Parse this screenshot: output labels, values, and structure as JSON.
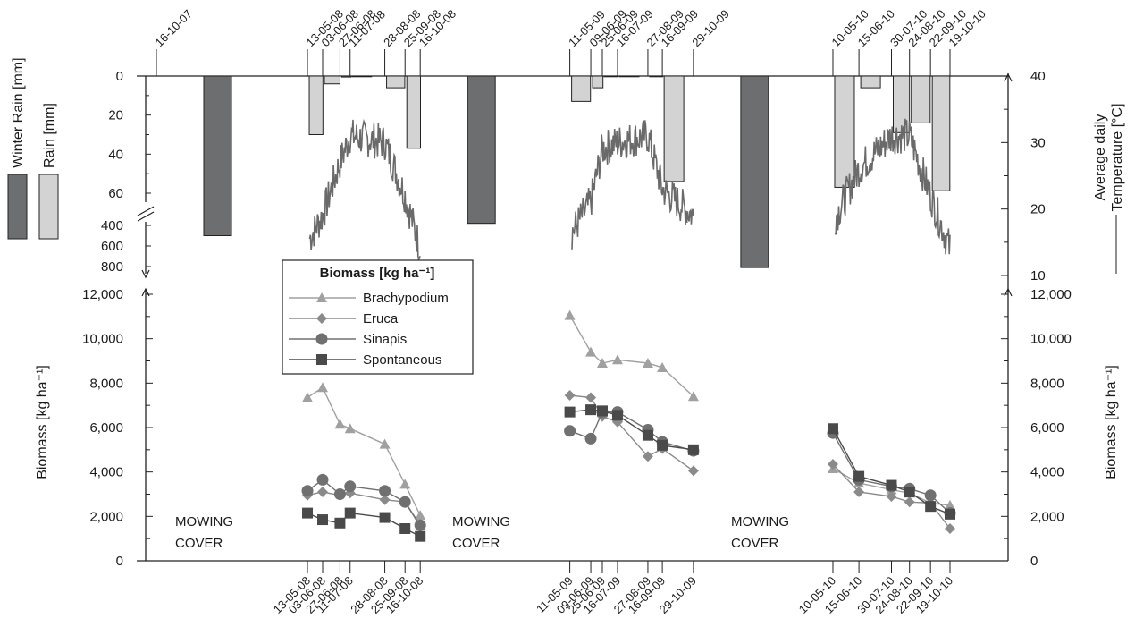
{
  "colors": {
    "winter_rain": "#6d6e70",
    "rain": "#d3d3d3",
    "temperature": "#6a6a6a",
    "brachypodium": "#a0a0a0",
    "eruca": "#8a8a8a",
    "sinapis": "#707070",
    "spontaneous": "#4a4a4a",
    "axis": "#222222"
  },
  "top_dates": {
    "labels": [
      "16-10-07",
      "13-05-08",
      "03-06-08",
      "27-06-08",
      "11-07-08",
      "28-08-08",
      "25-09-08",
      "16-10-08",
      "11-05-09",
      "09-06-09",
      "25-06-09",
      "16-07-09",
      "27-08-09",
      "16-09-09",
      "29-10-09",
      "10-05-10",
      "15-06-10",
      "30-07-10",
      "24-08-10",
      "22-09-10",
      "19-10-10"
    ],
    "days": [
      -209,
      0,
      21,
      45,
      59,
      107,
      135,
      156,
      363,
      392,
      408,
      429,
      471,
      491,
      534,
      727,
      763,
      808,
      833,
      862,
      889
    ]
  },
  "bottom_dates": {
    "labels": [
      "13-05-08",
      "03-06-08",
      "27-06-08",
      "11-07-08",
      "28-08-08",
      "25-09-08",
      "16-10-08",
      "11-05-09",
      "09-06-09",
      "25-06-09",
      "16-07-09",
      "27-08-09",
      "16-09-09",
      "29-10-09",
      "10-05-10",
      "15-06-10",
      "30-07-10",
      "24-08-10",
      "22-09-10",
      "19-10-10"
    ]
  },
  "chart_data": [
    {
      "type": "bar",
      "title": "",
      "ylabel": "Rain [mm]",
      "ylim_rain": [
        0,
        60
      ],
      "ylim_winter": [
        400,
        800
      ],
      "rain_ticks": [
        "0",
        "20",
        "40",
        "60"
      ],
      "winter_ticks": [
        "400",
        "600",
        "800"
      ],
      "series": [
        {
          "name": "Winter Rain [mm]",
          "x": [
            "16-10-07 – 13-05-08",
            "16-10-08 – 11-05-09",
            "29-10-09 – 10-05-10"
          ],
          "values": [
            500,
            380,
            810
          ]
        },
        {
          "name": "Rain [mm]",
          "x": [
            "13-05-08 – 03-06-08",
            "03-06-08 – 27-06-08",
            "27-06-08 – 11-07-08",
            "11-07-08 – 28-08-08",
            "28-08-08 – 25-09-08",
            "25-09-08 – 16-10-08",
            "11-05-09 – 09-06-09",
            "09-06-09 – 25-06-09",
            "25-06-09 – 16-07-09",
            "16-07-09 – 27-08-09",
            "27-08-09 – 16-09-09",
            "16-09-09 – 29-10-09",
            "10-05-10 – 15-06-10",
            "15-06-10 – 30-07-10",
            "30-07-10 – 24-08-10",
            "24-08-10 – 22-09-10",
            "22-09-10 – 19-10-10"
          ],
          "values": [
            30,
            4,
            0.5,
            0.3,
            6,
            37,
            13,
            6,
            0.3,
            0.3,
            0.3,
            54,
            57,
            6,
            29,
            24,
            63
          ]
        }
      ]
    },
    {
      "type": "line",
      "title": "",
      "ylabel": "Average daily Temperature [°C]",
      "ylim": [
        10,
        40
      ],
      "ticks": [
        "10",
        "20",
        "30",
        "40"
      ],
      "series": [
        {
          "name": "Average daily Temperature [°C]",
          "segments": [
            {
              "x": [
                "13-05-08",
                "03-06-08",
                "27-06-08",
                "11-07-08",
                "28-08-08",
                "25-09-08",
                "16-10-08"
              ],
              "anchors": [
                15,
                19,
                27,
                31,
                30,
                22,
                14
              ]
            },
            {
              "x": [
                "11-05-09",
                "09-06-09",
                "25-06-09",
                "16-07-09",
                "27-08-09",
                "16-09-09",
                "29-10-09"
              ],
              "anchors": [
                16,
                21,
                29,
                30,
                31,
                23,
                19
              ]
            },
            {
              "x": [
                "10-05-10",
                "15-06-10",
                "30-07-10",
                "24-08-10",
                "22-09-10",
                "19-10-10"
              ],
              "anchors": [
                18,
                26,
                31,
                31,
                22,
                14
              ]
            }
          ]
        }
      ]
    },
    {
      "type": "line",
      "title": "",
      "ylabel": "Biomass [kg ha⁻¹]",
      "ylim": [
        0,
        12000
      ],
      "ticks": [
        "0",
        "2,000",
        "4,000",
        "6,000",
        "8,000",
        "10,000",
        "12,000"
      ],
      "legend_title": "Biomass [kg ha⁻¹]",
      "legend_position": "top-left",
      "annotations": [
        "MOWING",
        "COVER"
      ],
      "series": [
        {
          "name": "Brachypodium",
          "x": [
            "13-05-08",
            "03-06-08",
            "27-06-08",
            "11-07-08",
            "28-08-08",
            "25-09-08",
            "16-10-08",
            "11-05-09",
            "09-06-09",
            "25-06-09",
            "16-07-09",
            "27-08-09",
            "16-09-09",
            "29-10-09",
            "10-05-10",
            "15-06-10",
            "30-07-10",
            "24-08-10",
            "22-09-10",
            "19-10-10"
          ],
          "values": [
            7350,
            7800,
            6150,
            5950,
            5250,
            3450,
            2050,
            11050,
            9400,
            8900,
            9050,
            8900,
            8700,
            7400,
            4150,
            3500,
            3200,
            3050,
            2600,
            2500
          ]
        },
        {
          "name": "Eruca",
          "x": [
            "13-05-08",
            "03-06-08",
            "27-06-08",
            "11-07-08",
            "28-08-08",
            "25-09-08",
            "16-10-08",
            "11-05-09",
            "09-06-09",
            "25-06-09",
            "16-07-09",
            "27-08-09",
            "16-09-09",
            "29-10-09",
            "10-05-10",
            "15-06-10",
            "30-07-10",
            "24-08-10",
            "22-09-10",
            "19-10-10"
          ],
          "values": [
            2950,
            3100,
            2950,
            3050,
            2750,
            2650,
            1550,
            7450,
            7350,
            6500,
            6250,
            4700,
            5050,
            4050,
            4350,
            3100,
            2900,
            2650,
            2600,
            1450
          ]
        },
        {
          "name": "Sinapis",
          "x": [
            "13-05-08",
            "03-06-08",
            "27-06-08",
            "11-07-08",
            "28-08-08",
            "25-09-08",
            "16-10-08",
            "11-05-09",
            "09-06-09",
            "25-06-09",
            "16-07-09",
            "27-08-09",
            "16-09-09",
            "29-10-09",
            "10-05-10",
            "15-06-10",
            "30-07-10",
            "24-08-10",
            "22-09-10",
            "19-10-10"
          ],
          "values": [
            3150,
            3650,
            3000,
            3350,
            3150,
            2650,
            1600,
            5850,
            5500,
            6700,
            6700,
            5900,
            5350,
            4950,
            5750,
            3650,
            3350,
            3250,
            2950,
            2150
          ]
        },
        {
          "name": "Spontaneous",
          "x": [
            "13-05-08",
            "03-06-08",
            "27-06-08",
            "11-07-08",
            "28-08-08",
            "25-09-08",
            "16-10-08",
            "11-05-09",
            "09-06-09",
            "25-06-09",
            "16-07-09",
            "27-08-09",
            "16-09-09",
            "29-10-09",
            "10-05-10",
            "15-06-10",
            "30-07-10",
            "24-08-10",
            "22-09-10",
            "19-10-10"
          ],
          "values": [
            2150,
            1850,
            1700,
            2150,
            1950,
            1450,
            1100,
            6700,
            6800,
            6750,
            6550,
            5650,
            5200,
            5000,
            5950,
            3800,
            3400,
            3100,
            2450,
            2100
          ]
        }
      ]
    }
  ]
}
